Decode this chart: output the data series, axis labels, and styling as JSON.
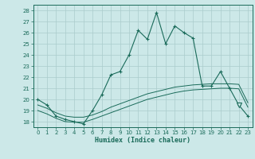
{
  "xlabel": "Humidex (Indice chaleur)",
  "xlim": [
    -0.5,
    23.5
  ],
  "ylim": [
    17.5,
    28.5
  ],
  "yticks": [
    18,
    19,
    20,
    21,
    22,
    23,
    24,
    25,
    26,
    27,
    28
  ],
  "xticks": [
    0,
    1,
    2,
    3,
    4,
    5,
    6,
    7,
    8,
    9,
    10,
    11,
    12,
    13,
    14,
    15,
    16,
    17,
    18,
    19,
    20,
    21,
    22,
    23
  ],
  "bg_color": "#cce8e8",
  "grid_color": "#aacccc",
  "line_color": "#1a6b5a",
  "main_y": [
    20.0,
    19.5,
    18.5,
    18.2,
    18.0,
    17.8,
    19.0,
    20.4,
    22.2,
    22.5,
    24.0,
    26.2,
    25.4,
    27.8,
    25.0,
    26.6,
    26.0,
    25.5,
    21.2,
    21.2,
    22.5,
    21.0,
    19.5,
    18.5
  ],
  "line2_y": [
    19.5,
    19.2,
    18.8,
    18.5,
    18.4,
    18.4,
    18.6,
    18.9,
    19.3,
    19.6,
    19.9,
    20.2,
    20.5,
    20.7,
    20.9,
    21.1,
    21.2,
    21.3,
    21.35,
    21.4,
    21.4,
    21.4,
    21.35,
    19.7
  ],
  "line3_y": [
    19.0,
    18.7,
    18.3,
    18.0,
    17.95,
    17.95,
    18.2,
    18.5,
    18.8,
    19.1,
    19.4,
    19.7,
    20.0,
    20.2,
    20.4,
    20.6,
    20.75,
    20.85,
    20.9,
    20.95,
    21.0,
    21.0,
    20.95,
    19.3
  ],
  "triangle_x": 22,
  "triangle_y": 19.5
}
